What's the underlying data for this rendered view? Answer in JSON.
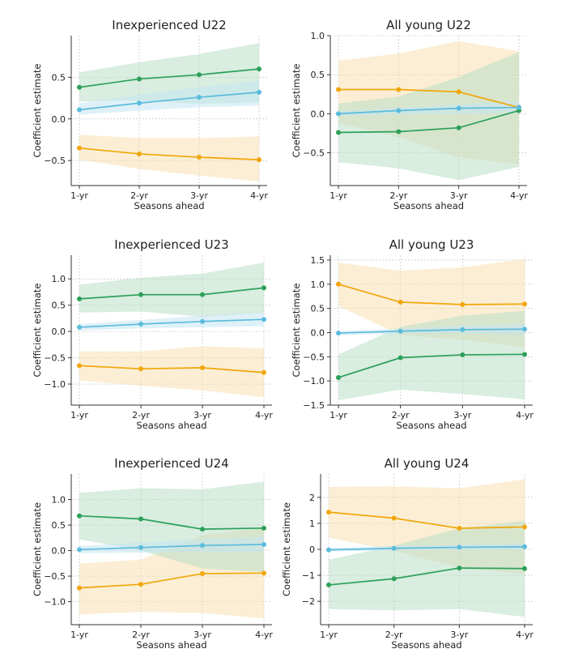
{
  "colors": {
    "green": "#2ca05a",
    "blue": "#5bbcdc",
    "orange": "#f0a60a",
    "green_band": "#b9dec6",
    "blue_band": "#c4e6f2",
    "orange_band": "#f7e0b0"
  },
  "chart_data": [
    {
      "type": "line",
      "title": "Inexperienced U22",
      "xlabel": "Seasons ahead",
      "ylabel": "Coefficient estimate",
      "categories": [
        "1-yr",
        "2-yr",
        "3-yr",
        "4-yr"
      ],
      "ylim": [
        -0.8,
        1.0
      ],
      "yticks": [
        0.5,
        0.0,
        -0.5
      ],
      "ytick_labels": [
        "0.5",
        "0.0",
        "−0.5"
      ],
      "series": [
        {
          "name": "orange",
          "color": "#f0a60a",
          "values": [
            -0.35,
            -0.42,
            -0.46,
            -0.49
          ],
          "lower": [
            -0.49,
            -0.6,
            -0.68,
            -0.75
          ],
          "upper": [
            -0.19,
            -0.23,
            -0.23,
            -0.21
          ]
        },
        {
          "name": "green",
          "color": "#2ca05a",
          "values": [
            0.38,
            0.48,
            0.53,
            0.6
          ],
          "lower": [
            0.21,
            0.22,
            0.18,
            0.2
          ],
          "upper": [
            0.56,
            0.68,
            0.78,
            0.91
          ]
        },
        {
          "name": "blue",
          "color": "#5bbcdc",
          "values": [
            0.11,
            0.19,
            0.26,
            0.32
          ],
          "lower": [
            0.05,
            0.1,
            0.14,
            0.16
          ],
          "upper": [
            0.19,
            0.29,
            0.38,
            0.46
          ]
        }
      ]
    },
    {
      "type": "line",
      "title": "All young U22",
      "xlabel": "Seasons ahead",
      "ylabel": "Coefficient estimate",
      "categories": [
        "1-yr",
        "2-yr",
        "3-yr",
        "4-yr"
      ],
      "ylim": [
        -0.92,
        1.0
      ],
      "yticks": [
        1.0,
        0.5,
        0.0,
        -0.5
      ],
      "ytick_labels": [
        "1.0",
        "0.5",
        "0.0",
        "−0.5"
      ],
      "series": [
        {
          "name": "orange",
          "color": "#f0a60a",
          "values": [
            0.31,
            0.31,
            0.28,
            0.08
          ],
          "lower": [
            -0.12,
            -0.3,
            -0.56,
            -0.65
          ],
          "upper": [
            0.68,
            0.77,
            0.93,
            0.8
          ]
        },
        {
          "name": "green",
          "color": "#2ca05a",
          "values": [
            -0.24,
            -0.23,
            -0.18,
            0.04
          ],
          "lower": [
            -0.62,
            -0.7,
            -0.85,
            -0.68
          ],
          "upper": [
            0.13,
            0.22,
            0.47,
            0.79
          ]
        },
        {
          "name": "blue",
          "color": "#5bbcdc",
          "values": [
            0.0,
            0.04,
            0.07,
            0.08
          ],
          "lower": [
            -0.03,
            -0.01,
            0.0,
            0.01
          ],
          "upper": [
            0.03,
            0.08,
            0.12,
            0.16
          ]
        }
      ]
    },
    {
      "type": "line",
      "title": "Inexperienced U23",
      "xlabel": "Seasons ahead",
      "ylabel": "Coefficient estimate",
      "categories": [
        "1-yr",
        "2-yr",
        "3-yr",
        "4-yr"
      ],
      "ylim": [
        -1.4,
        1.45
      ],
      "yticks": [
        1.0,
        0.5,
        0.0,
        -0.5,
        -1.0
      ],
      "ytick_labels": [
        "1.0",
        "0.5",
        "0.0",
        "−0.5",
        "−1.0"
      ],
      "series": [
        {
          "name": "orange",
          "color": "#f0a60a",
          "values": [
            -0.65,
            -0.71,
            -0.69,
            -0.78
          ],
          "lower": [
            -0.93,
            -1.03,
            -1.12,
            -1.25
          ],
          "upper": [
            -0.38,
            -0.38,
            -0.28,
            -0.32
          ]
        },
        {
          "name": "green",
          "color": "#2ca05a",
          "values": [
            0.62,
            0.7,
            0.7,
            0.83
          ],
          "lower": [
            0.36,
            0.38,
            0.28,
            0.35
          ],
          "upper": [
            0.89,
            1.02,
            1.1,
            1.31
          ]
        },
        {
          "name": "blue",
          "color": "#5bbcdc",
          "values": [
            0.08,
            0.14,
            0.19,
            0.23
          ],
          "lower": [
            0.02,
            0.06,
            0.08,
            0.1
          ],
          "upper": [
            0.14,
            0.22,
            0.3,
            0.36
          ]
        }
      ]
    },
    {
      "type": "line",
      "title": "All young U23",
      "xlabel": "Seasons ahead",
      "ylabel": "Coefficient estimate",
      "categories": [
        "1-yr",
        "2-yr",
        "3-yr",
        "4-yr"
      ],
      "ylim": [
        -1.5,
        1.6
      ],
      "yticks": [
        1.5,
        1.0,
        0.5,
        0.0,
        -0.5,
        -1.0,
        -1.5
      ],
      "ytick_labels": [
        "1.5",
        "1.0",
        "0.5",
        "0.0",
        "−0.5",
        "−1.0",
        "−1.5"
      ],
      "series": [
        {
          "name": "orange",
          "color": "#f0a60a",
          "values": [
            1.0,
            0.63,
            0.58,
            0.59
          ],
          "lower": [
            0.55,
            -0.05,
            -0.15,
            -0.3
          ],
          "upper": [
            1.45,
            1.28,
            1.35,
            1.52
          ]
        },
        {
          "name": "green",
          "color": "#2ca05a",
          "values": [
            -0.93,
            -0.52,
            -0.46,
            -0.45
          ],
          "lower": [
            -1.4,
            -1.18,
            -1.27,
            -1.38
          ],
          "upper": [
            -0.45,
            0.12,
            0.35,
            0.45
          ]
        },
        {
          "name": "blue",
          "color": "#5bbcdc",
          "values": [
            -0.01,
            0.03,
            0.06,
            0.07
          ],
          "lower": [
            -0.05,
            -0.02,
            -0.02,
            -0.04
          ],
          "upper": [
            0.03,
            0.08,
            0.14,
            0.18
          ]
        }
      ]
    },
    {
      "type": "line",
      "title": "Inexperienced U24",
      "xlabel": "Seasons ahead",
      "ylabel": "Coefficient estimate",
      "categories": [
        "1-yr",
        "2-yr",
        "3-yr",
        "4-yr"
      ],
      "ylim": [
        -1.45,
        1.5
      ],
      "yticks": [
        1.0,
        0.5,
        0.0,
        -0.5,
        -1.0
      ],
      "ytick_labels": [
        "1.0",
        "0.5",
        "0.0",
        "−0.5",
        "−1.0"
      ],
      "series": [
        {
          "name": "orange",
          "color": "#f0a60a",
          "values": [
            -0.73,
            -0.66,
            -0.45,
            -0.44
          ],
          "lower": [
            -1.25,
            -1.2,
            -1.22,
            -1.33
          ],
          "upper": [
            -0.25,
            -0.18,
            0.3,
            0.45
          ]
        },
        {
          "name": "green",
          "color": "#2ca05a",
          "values": [
            0.68,
            0.62,
            0.42,
            0.44
          ],
          "lower": [
            0.22,
            0.0,
            -0.35,
            -0.42
          ],
          "upper": [
            1.13,
            1.22,
            1.2,
            1.35
          ]
        },
        {
          "name": "blue",
          "color": "#5bbcdc",
          "values": [
            0.02,
            0.06,
            0.1,
            0.12
          ],
          "lower": [
            -0.05,
            -0.04,
            -0.02,
            -0.03
          ],
          "upper": [
            0.09,
            0.16,
            0.22,
            0.27
          ]
        }
      ]
    },
    {
      "type": "line",
      "title": "All young U24",
      "xlabel": "Seasons ahead",
      "ylabel": "Coefficient estimate",
      "categories": [
        "1-yr",
        "2-yr",
        "3-yr",
        "4-yr"
      ],
      "ylim": [
        -2.9,
        2.9
      ],
      "yticks": [
        2,
        1,
        0,
        -1,
        -2
      ],
      "ytick_labels": [
        "2",
        "1",
        "0",
        "−1",
        "−2"
      ],
      "series": [
        {
          "name": "orange",
          "color": "#f0a60a",
          "values": [
            1.43,
            1.2,
            0.81,
            0.86
          ],
          "lower": [
            0.45,
            -0.05,
            -0.7,
            -0.95
          ],
          "upper": [
            2.4,
            2.42,
            2.35,
            2.7
          ]
        },
        {
          "name": "green",
          "color": "#2ca05a",
          "values": [
            -1.37,
            -1.13,
            -0.72,
            -0.74
          ],
          "lower": [
            -2.3,
            -2.35,
            -2.3,
            -2.6
          ],
          "upper": [
            -0.4,
            0.15,
            0.8,
            1.1
          ]
        },
        {
          "name": "blue",
          "color": "#5bbcdc",
          "values": [
            -0.02,
            0.04,
            0.08,
            0.1
          ],
          "lower": [
            -0.08,
            -0.04,
            -0.02,
            -0.03
          ],
          "upper": [
            0.04,
            0.12,
            0.18,
            0.23
          ]
        }
      ]
    }
  ]
}
